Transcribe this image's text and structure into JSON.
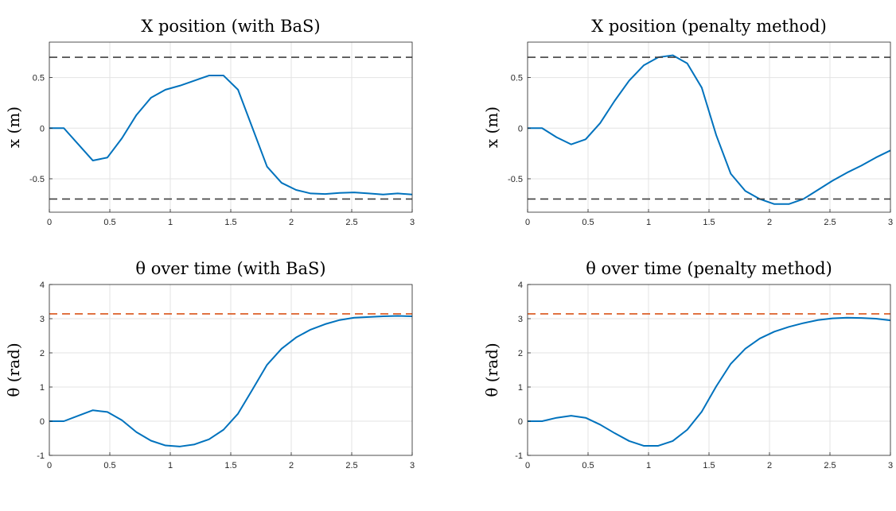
{
  "chart_data": [
    {
      "type": "line",
      "title": "X position (with BaS)",
      "xlabel": "",
      "ylabel": "x (m)",
      "xlim": [
        0,
        3
      ],
      "ylim": [
        -0.83,
        0.85
      ],
      "xticks": [
        0,
        0.5,
        1,
        1.5,
        2,
        2.5,
        3
      ],
      "xtick_labels": [
        "0",
        "0.5",
        "1",
        "1.5",
        "2",
        "2.5",
        "3"
      ],
      "yticks": [
        -0.5,
        0,
        0.5
      ],
      "ytick_labels": [
        "-0.5",
        "0",
        "0.5"
      ],
      "grid": true,
      "series": [
        {
          "color": "#0072BD",
          "style": "solid",
          "x": [
            0,
            0.12,
            0.24,
            0.36,
            0.48,
            0.6,
            0.72,
            0.84,
            0.96,
            1.08,
            1.2,
            1.32,
            1.44,
            1.56,
            1.68,
            1.8,
            1.92,
            2.04,
            2.16,
            2.28,
            2.4,
            2.52,
            2.64,
            2.76,
            2.88,
            3.0
          ],
          "y": [
            0,
            0,
            -0.16,
            -0.32,
            -0.29,
            -0.1,
            0.13,
            0.3,
            0.38,
            0.42,
            0.47,
            0.52,
            0.52,
            0.38,
            0.0,
            -0.38,
            -0.54,
            -0.61,
            -0.645,
            -0.65,
            -0.64,
            -0.635,
            -0.645,
            -0.655,
            -0.645,
            -0.655
          ]
        },
        {
          "color": "#404040",
          "style": "dashed",
          "x": [
            0,
            3
          ],
          "y": [
            0.7,
            0.7
          ]
        },
        {
          "color": "#404040",
          "style": "dashed",
          "x": [
            0,
            3
          ],
          "y": [
            -0.7,
            -0.7
          ]
        }
      ]
    },
    {
      "type": "line",
      "title": "X position (penalty method)",
      "xlabel": "",
      "ylabel": "x (m)",
      "xlim": [
        0,
        3
      ],
      "ylim": [
        -0.83,
        0.85
      ],
      "xticks": [
        0,
        0.5,
        1,
        1.5,
        2,
        2.5,
        3
      ],
      "xtick_labels": [
        "0",
        "0.5",
        "1",
        "1.5",
        "2",
        "2.5",
        "3"
      ],
      "yticks": [
        -0.5,
        0,
        0.5
      ],
      "ytick_labels": [
        "-0.5",
        "0",
        "0.5"
      ],
      "grid": true,
      "series": [
        {
          "color": "#0072BD",
          "style": "solid",
          "x": [
            0,
            0.12,
            0.24,
            0.36,
            0.48,
            0.6,
            0.72,
            0.84,
            0.96,
            1.08,
            1.2,
            1.32,
            1.44,
            1.56,
            1.68,
            1.8,
            1.92,
            2.04,
            2.16,
            2.28,
            2.4,
            2.52,
            2.64,
            2.76,
            2.88,
            3.0
          ],
          "y": [
            0,
            0,
            -0.09,
            -0.16,
            -0.11,
            0.05,
            0.27,
            0.47,
            0.62,
            0.7,
            0.72,
            0.64,
            0.4,
            -0.07,
            -0.45,
            -0.62,
            -0.7,
            -0.75,
            -0.75,
            -0.7,
            -0.61,
            -0.52,
            -0.44,
            -0.37,
            -0.29,
            -0.22
          ]
        },
        {
          "color": "#404040",
          "style": "dashed",
          "x": [
            0,
            3
          ],
          "y": [
            0.7,
            0.7
          ]
        },
        {
          "color": "#404040",
          "style": "dashed",
          "x": [
            0,
            3
          ],
          "y": [
            -0.7,
            -0.7
          ]
        }
      ]
    },
    {
      "type": "line",
      "title": "θ over time (with BaS)",
      "xlabel": "",
      "ylabel": "θ (rad)",
      "xlim": [
        0,
        3
      ],
      "ylim": [
        -1,
        4
      ],
      "xticks": [
        0,
        0.5,
        1,
        1.5,
        2,
        2.5,
        3
      ],
      "xtick_labels": [
        "0",
        "0.5",
        "1",
        "1.5",
        "2",
        "2.5",
        "3"
      ],
      "yticks": [
        -1,
        0,
        1,
        2,
        3,
        4
      ],
      "ytick_labels": [
        "-1",
        "0",
        "1",
        "2",
        "3",
        "4"
      ],
      "grid": true,
      "series": [
        {
          "color": "#0072BD",
          "style": "solid",
          "x": [
            0,
            0.12,
            0.24,
            0.36,
            0.48,
            0.6,
            0.72,
            0.84,
            0.96,
            1.08,
            1.2,
            1.32,
            1.44,
            1.56,
            1.68,
            1.8,
            1.92,
            2.04,
            2.16,
            2.28,
            2.4,
            2.52,
            2.64,
            2.76,
            2.88,
            3.0
          ],
          "y": [
            0,
            0,
            0.16,
            0.32,
            0.27,
            0.03,
            -0.32,
            -0.57,
            -0.71,
            -0.74,
            -0.68,
            -0.53,
            -0.25,
            0.22,
            0.93,
            1.65,
            2.12,
            2.45,
            2.68,
            2.84,
            2.96,
            3.03,
            3.05,
            3.07,
            3.08,
            3.07
          ]
        },
        {
          "color": "#D95319",
          "style": "dashed",
          "x": [
            0,
            3
          ],
          "y": [
            3.1416,
            3.1416
          ]
        }
      ]
    },
    {
      "type": "line",
      "title": "θ over time (penalty method)",
      "xlabel": "",
      "ylabel": "θ (rad)",
      "xlim": [
        0,
        3
      ],
      "ylim": [
        -1,
        4
      ],
      "xticks": [
        0,
        0.5,
        1,
        1.5,
        2,
        2.5,
        3
      ],
      "xtick_labels": [
        "0",
        "0.5",
        "1",
        "1.5",
        "2",
        "2.5",
        "3"
      ],
      "yticks": [
        -1,
        0,
        1,
        2,
        3,
        4
      ],
      "ytick_labels": [
        "-1",
        "0",
        "1",
        "2",
        "3",
        "4"
      ],
      "grid": true,
      "series": [
        {
          "color": "#0072BD",
          "style": "solid",
          "x": [
            0,
            0.12,
            0.24,
            0.36,
            0.48,
            0.6,
            0.72,
            0.84,
            0.96,
            1.08,
            1.2,
            1.32,
            1.44,
            1.56,
            1.68,
            1.8,
            1.92,
            2.04,
            2.16,
            2.28,
            2.4,
            2.52,
            2.64,
            2.76,
            2.88,
            3.0
          ],
          "y": [
            0,
            0,
            0.1,
            0.16,
            0.1,
            -0.1,
            -0.35,
            -0.58,
            -0.72,
            -0.72,
            -0.58,
            -0.25,
            0.28,
            1.02,
            1.68,
            2.12,
            2.42,
            2.62,
            2.76,
            2.87,
            2.96,
            3.01,
            3.03,
            3.02,
            3.0,
            2.95
          ]
        },
        {
          "color": "#D95319",
          "style": "dashed",
          "x": [
            0,
            3
          ],
          "y": [
            3.1416,
            3.1416
          ]
        }
      ]
    }
  ]
}
